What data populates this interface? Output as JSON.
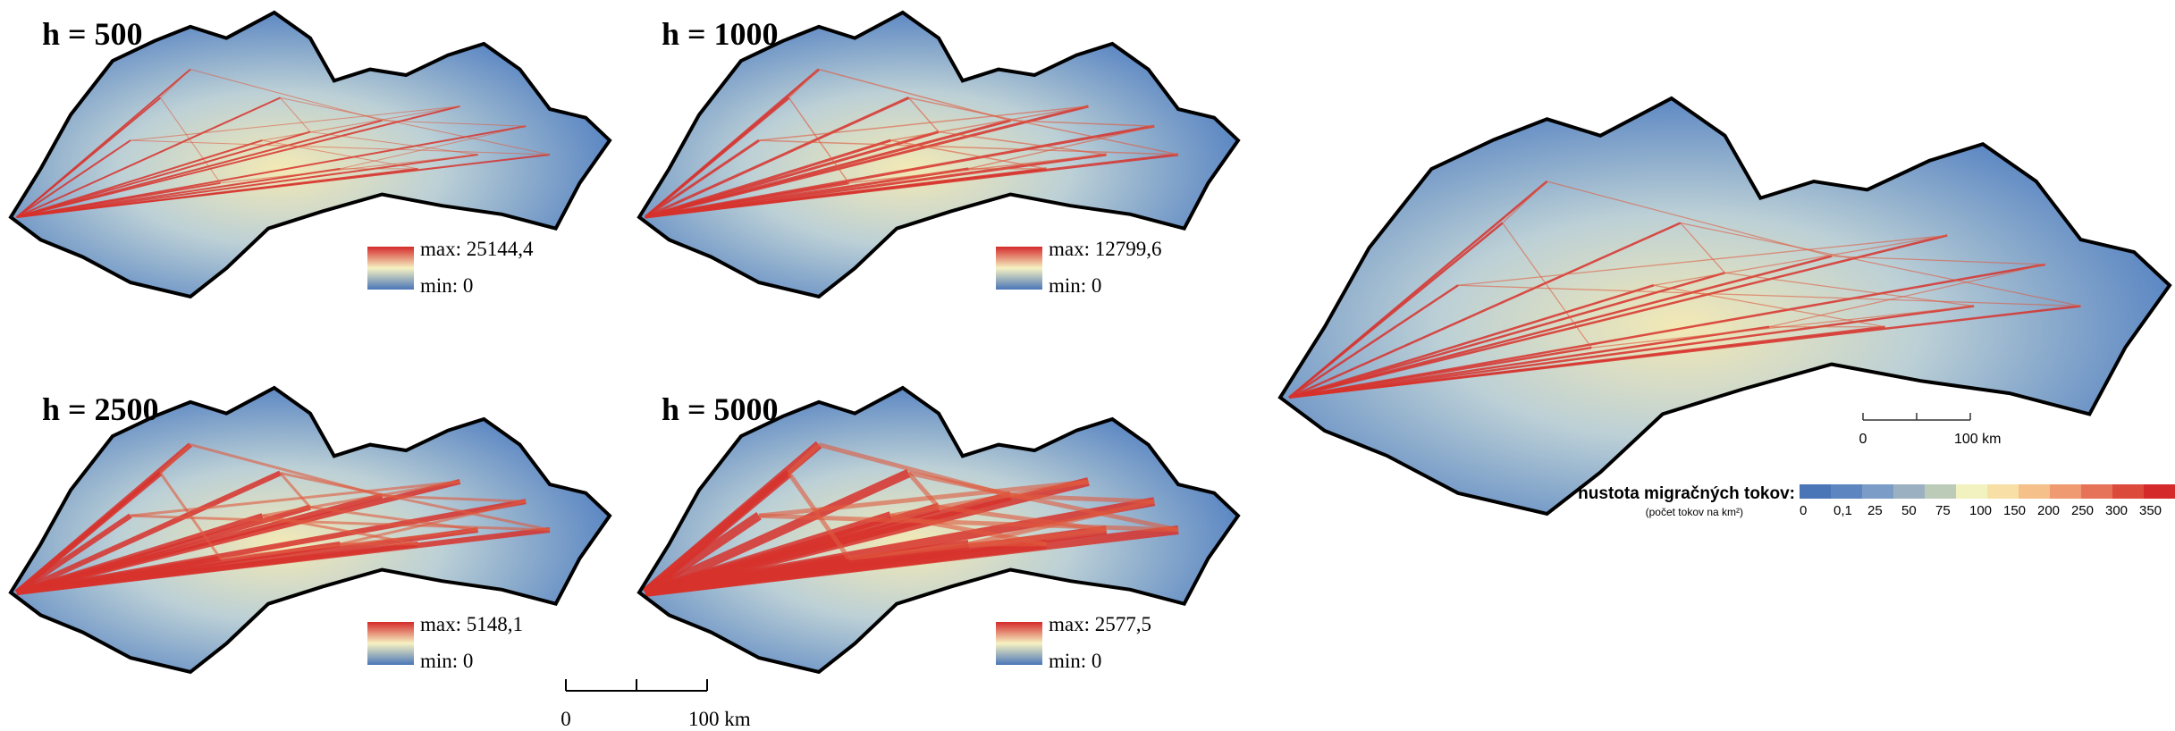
{
  "panels": [
    {
      "label": "h = 500",
      "max": "max: 25144,4",
      "min": "min: 0"
    },
    {
      "label": "h = 1000",
      "max": "max: 12799,6",
      "min": "min: 0"
    },
    {
      "label": "h = 2500",
      "max": "max: 5148,1",
      "min": "min: 0"
    },
    {
      "label": "h = 5000",
      "max": "max: 2577,5",
      "min": "min: 0"
    }
  ],
  "scale_bar": {
    "start": "0",
    "end": "100 km"
  },
  "main_map": {
    "scale_bar": {
      "start": "0",
      "end": "100 km"
    },
    "legend": {
      "title": "hustota migračných tokov:",
      "subtitle": "(počet tokov na km²)",
      "classes": [
        "0",
        "0,1",
        "25",
        "50",
        "75",
        "100",
        "150",
        "200",
        "250",
        "300",
        "350"
      ],
      "colors": [
        "#4a76b8",
        "#5d85c0",
        "#7a9cc6",
        "#9bb1c2",
        "#bccbb8",
        "#f2f2c0",
        "#f8dfa5",
        "#f5c08a",
        "#ef9a70",
        "#e67358",
        "#dc4a3c",
        "#d42a2a"
      ]
    }
  }
}
